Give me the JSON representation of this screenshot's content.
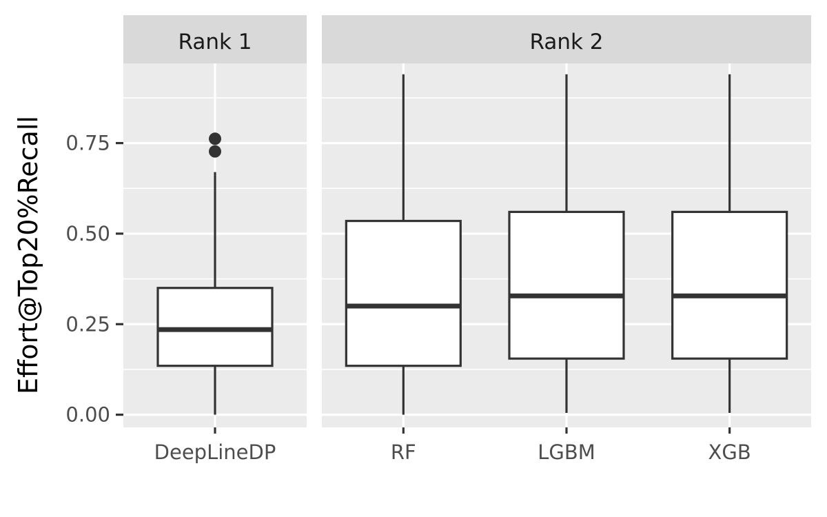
{
  "chart_data": {
    "type": "box",
    "ylabel": "Effort@Top20%Recall",
    "xlabel": "",
    "ylim": [
      -0.035,
      0.97
    ],
    "yticks": [
      0.0,
      0.25,
      0.5,
      0.75
    ],
    "ytick_labels": [
      "0.00",
      "0.25",
      "0.50",
      "0.75"
    ],
    "grid": true,
    "facets": [
      {
        "label": "Rank 1",
        "categories": [
          "DeepLineDP"
        ],
        "boxes": [
          {
            "name": "DeepLineDP",
            "whisker_low": 0.0,
            "q1": 0.135,
            "median": 0.235,
            "q3": 0.35,
            "whisker_high": 0.67,
            "outliers": [
              0.727,
              0.762
            ]
          }
        ]
      },
      {
        "label": "Rank 2",
        "categories": [
          "RF",
          "LGBM",
          "XGB"
        ],
        "boxes": [
          {
            "name": "RF",
            "whisker_low": 0.0,
            "q1": 0.135,
            "median": 0.3,
            "q3": 0.535,
            "whisker_high": 0.94,
            "outliers": []
          },
          {
            "name": "LGBM",
            "whisker_low": 0.005,
            "q1": 0.155,
            "median": 0.328,
            "q3": 0.56,
            "whisker_high": 0.94,
            "outliers": []
          },
          {
            "name": "XGB",
            "whisker_low": 0.005,
            "q1": 0.155,
            "median": 0.328,
            "q3": 0.56,
            "whisker_high": 0.94,
            "outliers": []
          }
        ]
      }
    ]
  },
  "colors": {
    "panel": "#ebebeb",
    "strip": "#d9d9d9",
    "grid": "#ffffff",
    "box_line": "#333333",
    "box_fill": "#ffffff",
    "tick": "#333333"
  }
}
